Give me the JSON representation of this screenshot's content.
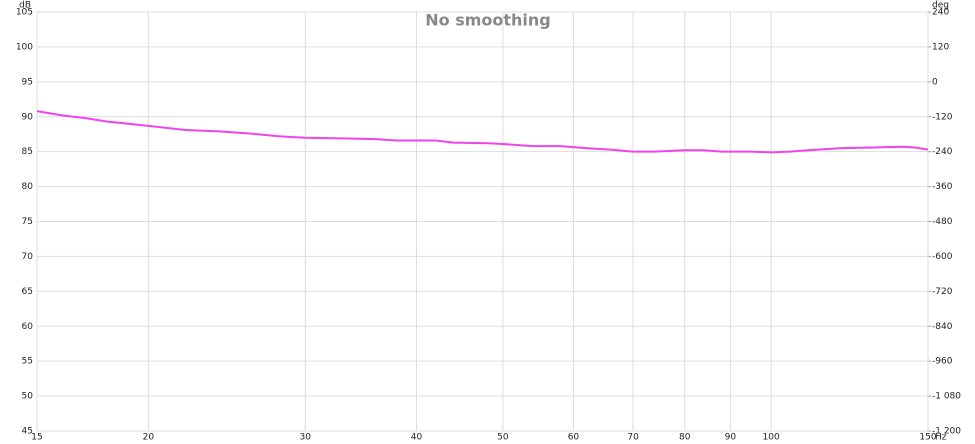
{
  "chart_data": {
    "type": "line",
    "title": "No smoothing",
    "ylabel": "dB",
    "y2label": "deg",
    "xlabel": "Hz",
    "xscale": "log",
    "grid": true,
    "xlim": [
      15,
      150
    ],
    "xticks": [
      15,
      20,
      30,
      40,
      50,
      60,
      70,
      80,
      90,
      100,
      150
    ],
    "ylim": [
      45,
      105
    ],
    "yticks": [
      45,
      50,
      55,
      60,
      65,
      70,
      75,
      80,
      85,
      90,
      95,
      100,
      105
    ],
    "y2lim": [
      -1200,
      240
    ],
    "y2ticks": [
      {
        "value": -1200,
        "label": "-1 200"
      },
      {
        "value": -1080,
        "label": "-1 080"
      },
      -960,
      -840,
      -720,
      -600,
      -480,
      -360,
      -240,
      -120,
      0,
      120,
      240
    ],
    "series": [
      {
        "color": "#ee44ee",
        "x": [
          15,
          16,
          17,
          18,
          19,
          20,
          22,
          24,
          26,
          28,
          30,
          33,
          36,
          38,
          42,
          44,
          48,
          50,
          54,
          58,
          62,
          66,
          70,
          74,
          80,
          84,
          88,
          95,
          100,
          105,
          110,
          120,
          130,
          140,
          145,
          150
        ],
        "values": [
          90.8,
          90.2,
          89.8,
          89.3,
          89.0,
          88.7,
          88.1,
          87.9,
          87.6,
          87.2,
          87.0,
          86.9,
          86.8,
          86.6,
          86.6,
          86.3,
          86.2,
          86.1,
          85.8,
          85.8,
          85.5,
          85.3,
          85.0,
          85.0,
          85.2,
          85.2,
          85.0,
          85.0,
          84.9,
          85.0,
          85.2,
          85.5,
          85.6,
          85.7,
          85.6,
          85.3
        ]
      }
    ]
  }
}
